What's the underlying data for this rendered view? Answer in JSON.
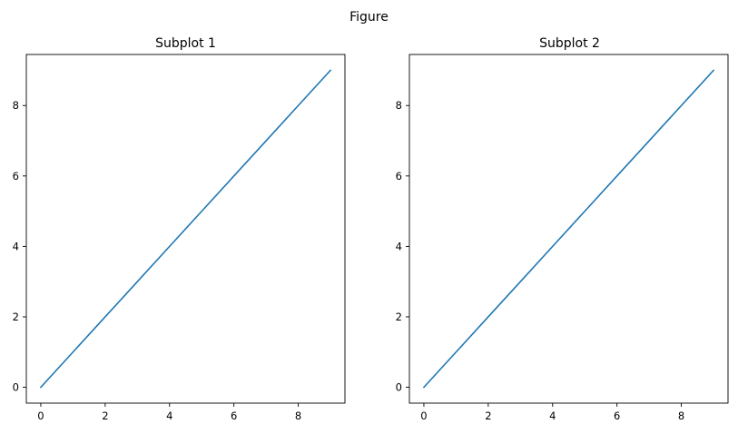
{
  "figure": {
    "suptitle": "Figure"
  },
  "chart_data": [
    {
      "type": "line",
      "title": "Subplot 1",
      "xlabel": "",
      "ylabel": "",
      "xlim": [
        -0.45,
        9.45
      ],
      "ylim": [
        -0.45,
        9.45
      ],
      "xticks": [
        0,
        2,
        4,
        6,
        8
      ],
      "yticks": [
        0,
        2,
        4,
        6,
        8
      ],
      "grid": false,
      "series": [
        {
          "x": [
            0,
            1,
            2,
            3,
            4,
            5,
            6,
            7,
            8,
            9
          ],
          "y": [
            0,
            1,
            2,
            3,
            4,
            5,
            6,
            7,
            8,
            9
          ],
          "color": "#1f77b4"
        }
      ]
    },
    {
      "type": "line",
      "title": "Subplot 2",
      "xlabel": "",
      "ylabel": "",
      "xlim": [
        -0.45,
        9.45
      ],
      "ylim": [
        -0.45,
        9.45
      ],
      "xticks": [
        0,
        2,
        4,
        6,
        8
      ],
      "yticks": [
        0,
        2,
        4,
        6,
        8
      ],
      "grid": false,
      "series": [
        {
          "x": [
            0,
            1,
            2,
            3,
            4,
            5,
            6,
            7,
            8,
            9
          ],
          "y": [
            0,
            1,
            2,
            3,
            4,
            5,
            6,
            7,
            8,
            9
          ],
          "color": "#1f77b4"
        }
      ]
    }
  ]
}
